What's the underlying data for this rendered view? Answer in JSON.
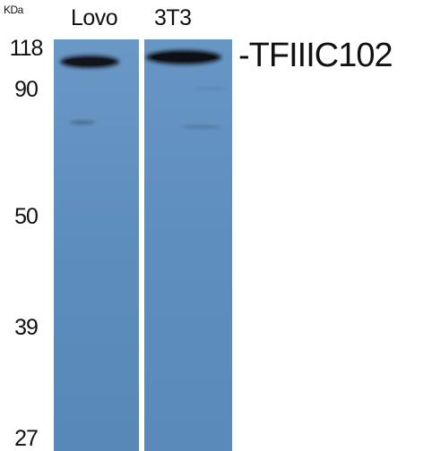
{
  "unit": "KDa",
  "lanes": [
    {
      "label": "Lovo"
    },
    {
      "label": "3T3"
    }
  ],
  "markers": [
    "118",
    "90",
    "50",
    "39",
    "27"
  ],
  "target": "-TFIIIC102",
  "colors": {
    "membrane": "#5f8fbf",
    "band": "#1a1f2a",
    "divider": "#ffffff"
  }
}
